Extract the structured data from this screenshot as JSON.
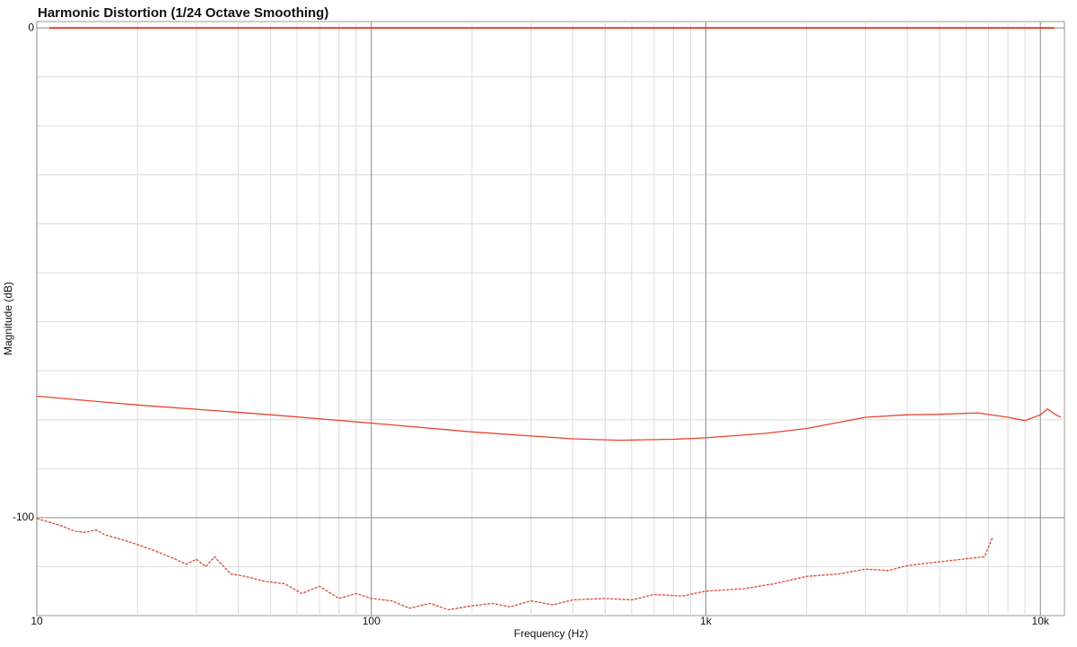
{
  "chart_data": {
    "type": "line",
    "title": "Harmonic Distortion (1/24 Octave Smoothing)",
    "x_label": "Frequency (Hz)",
    "y_label": "Magnitude (dB)",
    "x_log": true,
    "xlim": [
      10,
      11800
    ],
    "ylim": [
      -120,
      1.3
    ],
    "xticks": [
      10,
      100,
      {
        "value": 1000,
        "label": "1k"
      },
      {
        "value": 10000,
        "label": "10k"
      }
    ],
    "x_minor_ticks": [
      20,
      30,
      40,
      50,
      60,
      70,
      80,
      90,
      200,
      300,
      400,
      500,
      600,
      700,
      800,
      900,
      2000,
      3000,
      4000,
      5000,
      6000,
      7000,
      8000,
      9000
    ],
    "yticks": [
      0,
      -100
    ],
    "y_minor_ticks": [
      -10,
      -20,
      -30,
      -40,
      -50,
      -60,
      -70,
      -80,
      -90,
      -110
    ],
    "grid": true,
    "series": [
      {
        "color": "#e8432c",
        "dashed": false,
        "x": [
          10.9,
          11000
        ],
        "values": [
          0,
          0
        ]
      },
      {
        "color": "#e8432c",
        "dashed": false,
        "x": [
          10,
          20,
          50,
          100,
          200,
          400,
          550,
          800,
          1000,
          1500,
          2000,
          3000,
          4000,
          5000,
          6500,
          8000,
          9000,
          10000,
          10500,
          11000,
          11500
        ],
        "values": [
          -75.2,
          -77,
          -79,
          -80.7,
          -82.5,
          -83.9,
          -84.2,
          -84,
          -83.7,
          -82.8,
          -81.8,
          -79.5,
          -79,
          -78.9,
          -78.6,
          -79.5,
          -80.2,
          -79,
          -77.8,
          -78.8,
          -79.5
        ]
      },
      {
        "color": "#e8432c",
        "dashed": true,
        "x": [
          10,
          11,
          12,
          13,
          14,
          15,
          16,
          18,
          20,
          22,
          25,
          28,
          30,
          32,
          34,
          38,
          42,
          48,
          55,
          62,
          70,
          80,
          90,
          100,
          115,
          130,
          150,
          170,
          200,
          230,
          260,
          300,
          350,
          400,
          500,
          600,
          700,
          850,
          1000,
          1300,
          1600,
          2000,
          2500,
          3000,
          3500,
          4000,
          5000,
          6000,
          6800,
          7000,
          7200
        ],
        "values": [
          -100.2,
          -101,
          -101.8,
          -102.8,
          -103,
          -102.5,
          -103.5,
          -104.5,
          -105.5,
          -106.5,
          -108,
          -109.5,
          -108.5,
          -110,
          -108,
          -111.5,
          -112,
          -113,
          -113.5,
          -115.5,
          -114,
          -116.5,
          -115.5,
          -116.5,
          -117,
          -118.5,
          -117.5,
          -118.8,
          -118,
          -117.5,
          -118.2,
          -117,
          -117.8,
          -116.8,
          -116.5,
          -116.8,
          -115.7,
          -116,
          -115,
          -114.5,
          -113.5,
          -112,
          -111.5,
          -110.5,
          -110.8,
          -109.8,
          -109,
          -108.4,
          -108,
          -106,
          -104
        ]
      }
    ]
  }
}
